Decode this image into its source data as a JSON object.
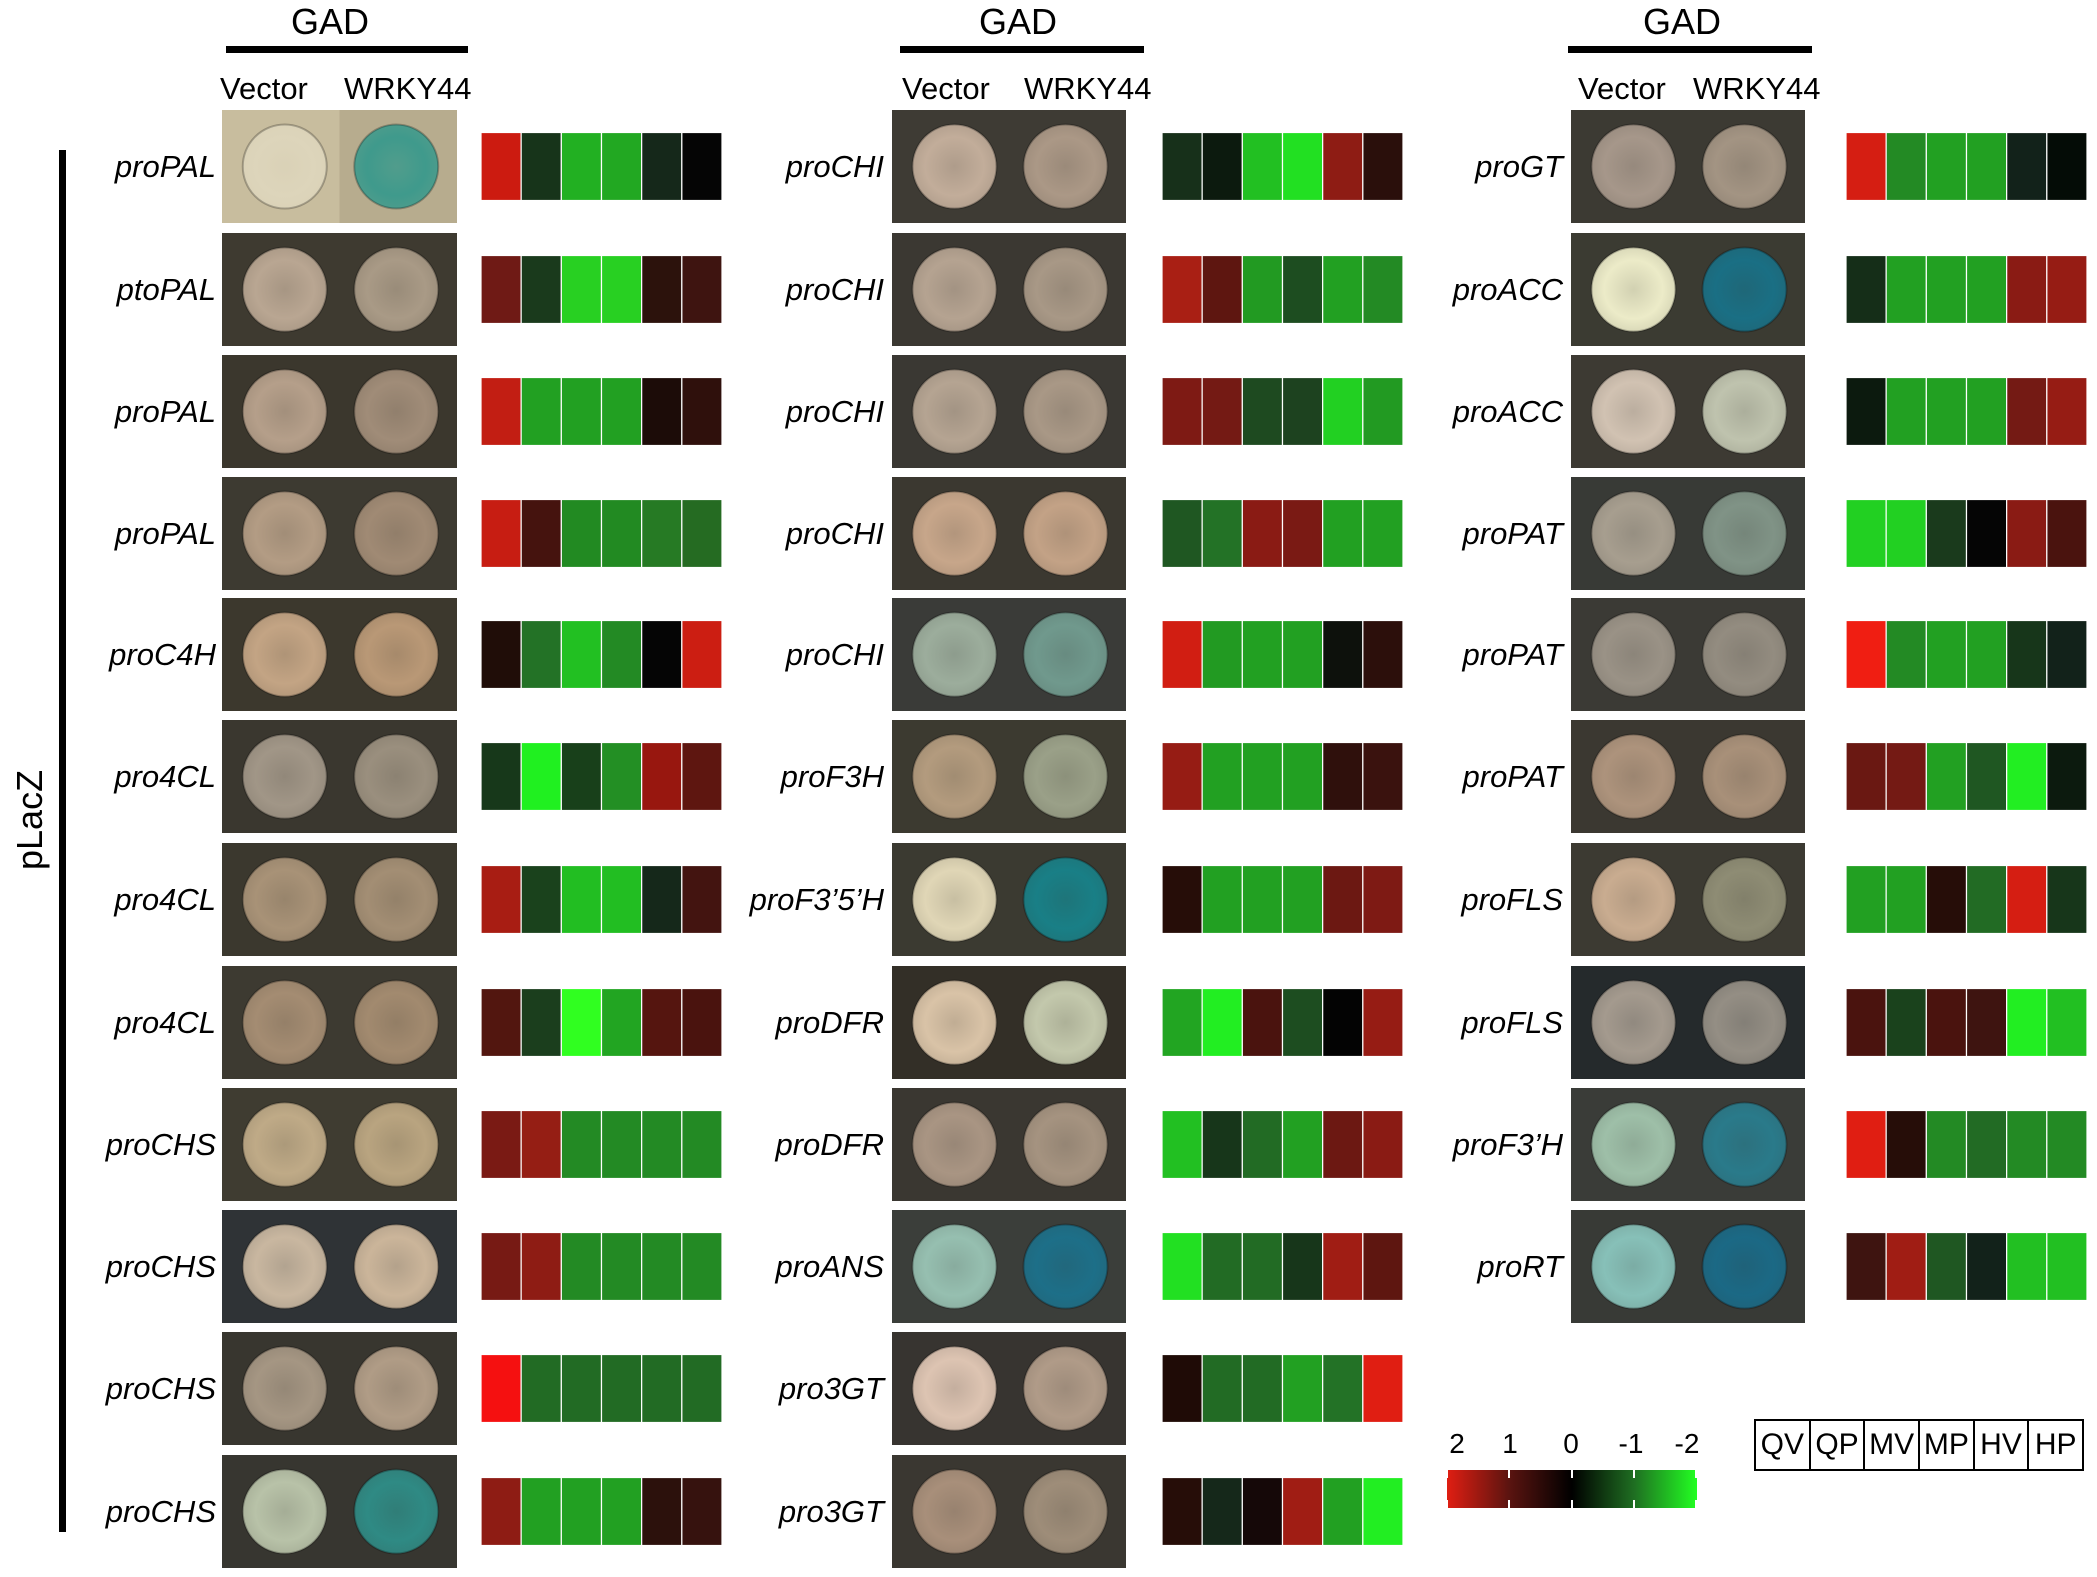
{
  "header": {
    "gad": "GAD",
    "vector": "Vector",
    "wrky": "WRKY44",
    "side_label": "pLacZ"
  },
  "panels": [
    {
      "rows": [
        {
          "label": "proPAL",
          "left_plate": "#c8bd9e",
          "left_colony": "#ddd5bb",
          "right_plate": "#b7ac8e",
          "right_colony": "#3f9a8c",
          "heat": [
            "#cc1b10",
            "#17341a",
            "#22b022",
            "#22a822",
            "#15281a",
            "#050505"
          ]
        },
        {
          "label": "ptoPAL",
          "left_plate": "#3e3a30",
          "left_colony": "#b9a692",
          "right_plate": "#3e3a30",
          "right_colony": "#a99a86",
          "heat": [
            "#6f1a15",
            "#1a3a1c",
            "#28d022",
            "#28d022",
            "#2c120c",
            "#3e1410"
          ]
        },
        {
          "label": "proPAL",
          "left_plate": "#3b372d",
          "left_colony": "#b59f8a",
          "right_plate": "#3b372d",
          "right_colony": "#a08c78",
          "heat": [
            "#c21e13",
            "#22a022",
            "#22a022",
            "#22a022",
            "#1c0c08",
            "#2f100c"
          ]
        },
        {
          "label": "proPAL",
          "left_plate": "#3d3a31",
          "left_colony": "#b39c84",
          "right_plate": "#3d3a31",
          "right_colony": "#a08a74",
          "heat": [
            "#c71d12",
            "#45130e",
            "#228a22",
            "#228a22",
            "#267a24",
            "#256b22"
          ]
        },
        {
          "label": "proC4H",
          "left_plate": "#3c382d",
          "left_colony": "#c3a484",
          "right_plate": "#3c382d",
          "right_colony": "#b99876",
          "heat": [
            "#200d08",
            "#237226",
            "#22c022",
            "#238a24",
            "#050505",
            "#cc1e12"
          ]
        },
        {
          "label": "pro4CL",
          "left_plate": "#3a372f",
          "left_colony": "#a19687",
          "right_plate": "#3a372f",
          "right_colony": "#9a8f7e",
          "heat": [
            "#17381a",
            "#20f020",
            "#18401a",
            "#238f24",
            "#98170f",
            "#5e1610"
          ]
        },
        {
          "label": "pro4CL",
          "left_plate": "#3b382e",
          "left_colony": "#a89277",
          "right_plate": "#3b382e",
          "right_colony": "#a38e74",
          "heat": [
            "#a81d13",
            "#1a421c",
            "#22be22",
            "#22be22",
            "#15281a",
            "#431410"
          ]
        },
        {
          "label": "pro4CL",
          "left_plate": "#3d3a31",
          "left_colony": "#a48c72",
          "right_plate": "#3d3a31",
          "right_colony": "#a28a6f",
          "heat": [
            "#52160f",
            "#1b3e1d",
            "#30ff20",
            "#22a522",
            "#55150f",
            "#4a130e"
          ]
        },
        {
          "label": "proCHS",
          "left_plate": "#3f3c31",
          "left_colony": "#bfaa87",
          "right_plate": "#3f3c31",
          "right_colony": "#b9a480",
          "heat": [
            "#7a1a14",
            "#951e14",
            "#238a24",
            "#238a24",
            "#238a24",
            "#238a24"
          ]
        },
        {
          "label": "proCHS",
          "left_plate": "#2f3336",
          "left_colony": "#c9b7a0",
          "right_plate": "#2f3336",
          "right_colony": "#cbb59a",
          "heat": [
            "#771a14",
            "#8e1c14",
            "#238a24",
            "#238a24",
            "#238a24",
            "#238a24"
          ]
        },
        {
          "label": "proCHS",
          "left_plate": "#38362f",
          "left_colony": "#a59683",
          "right_plate": "#38362f",
          "right_colony": "#b09c86",
          "heat": [
            "#f51010",
            "#226b24",
            "#226b24",
            "#226b24",
            "#226b24",
            "#226b24"
          ]
        },
        {
          "label": "proCHS",
          "left_plate": "#373630",
          "left_colony": "#b8c2a8",
          "right_plate": "#373630",
          "right_colony": "#2f8a84",
          "heat": [
            "#8e1c14",
            "#22a022",
            "#22a022",
            "#22a022",
            "#2c110c",
            "#36120e"
          ]
        }
      ]
    },
    {
      "rows": [
        {
          "label": "proCHI",
          "left_plate": "#3e3b34",
          "left_colony": "#c2ad9a",
          "right_plate": "#3e3b34",
          "right_colony": "#ab9886",
          "heat": [
            "#17301a",
            "#0c1a0e",
            "#22c022",
            "#22e022",
            "#8e1c14",
            "#2a0f0b"
          ]
        },
        {
          "label": "proCHI",
          "left_plate": "#3b3832",
          "left_colony": "#b5a391",
          "right_plate": "#3b3832",
          "right_colony": "#a89886",
          "heat": [
            "#a91f14",
            "#5e1610",
            "#229a22",
            "#1d4d20",
            "#22a022",
            "#238a24"
          ]
        },
        {
          "label": "proCHI",
          "left_plate": "#3a3833",
          "left_colony": "#b5a492",
          "right_plate": "#3a3833",
          "right_colony": "#a99886",
          "heat": [
            "#7e1a14",
            "#741a14",
            "#1e4a20",
            "#1d421f",
            "#22d022",
            "#229a22"
          ]
        },
        {
          "label": "proCHI",
          "left_plate": "#3b3830",
          "left_colony": "#c7a68a",
          "right_plate": "#3b3830",
          "right_colony": "#c3a286",
          "heat": [
            "#1f5722",
            "#237226",
            "#8a1b14",
            "#7a1a14",
            "#22a022",
            "#22a022"
          ]
        },
        {
          "label": "proCHI",
          "left_plate": "#3a3b38",
          "left_colony": "#9cad9c",
          "right_plate": "#3a3b38",
          "right_colony": "#70998d",
          "heat": [
            "#d11e12",
            "#229a22",
            "#22a022",
            "#22a022",
            "#0d110c",
            "#2c0f0b"
          ]
        },
        {
          "label": "proF3H",
          "left_plate": "#3c3a30",
          "left_colony": "#b39b7e",
          "right_plate": "#3c3a30",
          "right_colony": "#9aa088",
          "heat": [
            "#961c14",
            "#22a022",
            "#22a022",
            "#22a022",
            "#2f100c",
            "#3a120e"
          ]
        },
        {
          "label": "proF3’5’H",
          "left_plate": "#3b3a31",
          "left_colony": "#e0d6b6",
          "right_plate": "#3b3a31",
          "right_colony": "#197f86",
          "heat": [
            "#260d08",
            "#22a022",
            "#22a022",
            "#22a022",
            "#6c1812",
            "#7e1a14"
          ]
        },
        {
          "label": "proDFR",
          "left_plate": "#332f27",
          "left_colony": "#d9c3a7",
          "right_plate": "#332f27",
          "right_colony": "#c3c8ac",
          "heat": [
            "#22a522",
            "#22ee22",
            "#4a130e",
            "#1d4d20",
            "#030303",
            "#961c14"
          ]
        },
        {
          "label": "proDFR",
          "left_plate": "#3a3731",
          "left_colony": "#a99583",
          "right_plate": "#3a3731",
          "right_colony": "#a59380",
          "heat": [
            "#22c022",
            "#17361a",
            "#226b24",
            "#22a022",
            "#6c1812",
            "#8a1b14"
          ]
        },
        {
          "label": "proANS",
          "left_plate": "#3b3e3a",
          "left_colony": "#96bfb0",
          "right_plate": "#3b3e3a",
          "right_colony": "#1d6f88",
          "heat": [
            "#22e022",
            "#226b24",
            "#226b24",
            "#17361a",
            "#a01d14",
            "#5e1610"
          ]
        },
        {
          "label": "pro3GT",
          "left_plate": "#373430",
          "left_colony": "#ddc4b2",
          "right_plate": "#373430",
          "right_colony": "#b09b88",
          "heat": [
            "#1f0b06",
            "#226b24",
            "#226b24",
            "#22a022",
            "#237226",
            "#e01e12"
          ]
        },
        {
          "label": "pro3GT",
          "left_plate": "#3a3731",
          "left_colony": "#a88f7a",
          "right_plate": "#3a3731",
          "right_colony": "#9e8d79",
          "heat": [
            "#260d08",
            "#15281a",
            "#150808",
            "#a01d14",
            "#22a022",
            "#22ee22"
          ]
        }
      ]
    },
    {
      "rows": [
        {
          "label": "proGT",
          "left_plate": "#3c3a33",
          "left_colony": "#a6978a",
          "right_plate": "#3c3a33",
          "right_colony": "#a39483",
          "heat": [
            "#d51e12",
            "#238a24",
            "#22a022",
            "#22a022",
            "#12221a",
            "#040c06"
          ]
        },
        {
          "label": "proACC",
          "left_plate": "#3b3b32",
          "left_colony": "#ecebc8",
          "right_plate": "#3b3b32",
          "right_colony": "#1a6f84",
          "heat": [
            "#152e18",
            "#22a022",
            "#22a022",
            "#22a022",
            "#8a1b14",
            "#961c14"
          ]
        },
        {
          "label": "proACC",
          "left_plate": "#3d3a33",
          "left_colony": "#d1c2b2",
          "right_plate": "#3d3a33",
          "right_colony": "#bfc3ae",
          "heat": [
            "#0c1a0e",
            "#22a022",
            "#22a022",
            "#22a022",
            "#741a14",
            "#961c14"
          ]
        },
        {
          "label": "proPAT",
          "left_plate": "#383a36",
          "left_colony": "#a79e8f",
          "right_plate": "#383a36",
          "right_colony": "#809386",
          "heat": [
            "#22d022",
            "#22d022",
            "#1a3a1c",
            "#050505",
            "#8a1b14",
            "#4a130e"
          ]
        },
        {
          "label": "proPAT",
          "left_plate": "#3b3a35",
          "left_colony": "#9a9286",
          "right_plate": "#3b3a35",
          "right_colony": "#938c80",
          "heat": [
            "#f01e12",
            "#238a24",
            "#22a022",
            "#22a022",
            "#17361a",
            "#12221a"
          ]
        },
        {
          "label": "proPAT",
          "left_plate": "#3b3831",
          "left_colony": "#ad937c",
          "right_plate": "#3b3831",
          "right_colony": "#a89079",
          "heat": [
            "#6a1812",
            "#741a14",
            "#22a022",
            "#1f5722",
            "#22ee22",
            "#0c1a0e"
          ]
        },
        {
          "label": "proFLS",
          "left_plate": "#3c3a32",
          "left_colony": "#c9ac90",
          "right_plate": "#3c3a32",
          "right_colony": "#8e8c74",
          "heat": [
            "#22a022",
            "#22a022",
            "#260d08",
            "#226b24",
            "#d51e12",
            "#17361a"
          ]
        },
        {
          "label": "proFLS",
          "left_plate": "#252a2c",
          "left_colony": "#a49a8e",
          "right_plate": "#252a2c",
          "right_colony": "#948e84",
          "heat": [
            "#4a130e",
            "#1a421c",
            "#4a130e",
            "#3e1410",
            "#22ee22",
            "#22c022"
          ]
        },
        {
          "label": "proF3’H",
          "left_plate": "#3a3c38",
          "left_colony": "#9ebfa8",
          "right_plate": "#3a3c38",
          "right_colony": "#2a7a8a",
          "heat": [
            "#e01e12",
            "#260d08",
            "#238a24",
            "#226b24",
            "#238a24",
            "#238a24"
          ]
        },
        {
          "label": "proRT",
          "left_plate": "#383a36",
          "left_colony": "#87c0b8",
          "right_plate": "#383a36",
          "right_colony": "#1b6985",
          "heat": [
            "#3e1410",
            "#a01d14",
            "#1f5722",
            "#12221a",
            "#22c022",
            "#22c022"
          ]
        }
      ]
    }
  ],
  "scale": {
    "ticks": [
      "2",
      "1",
      "0",
      "-1",
      "-2"
    ],
    "colors": [
      "#e01e12",
      "#5a1410",
      "#000000",
      "#1f6f22",
      "#22ff22"
    ]
  },
  "legend": [
    "QV",
    "QP",
    "MV",
    "MP",
    "HV",
    "HP"
  ]
}
